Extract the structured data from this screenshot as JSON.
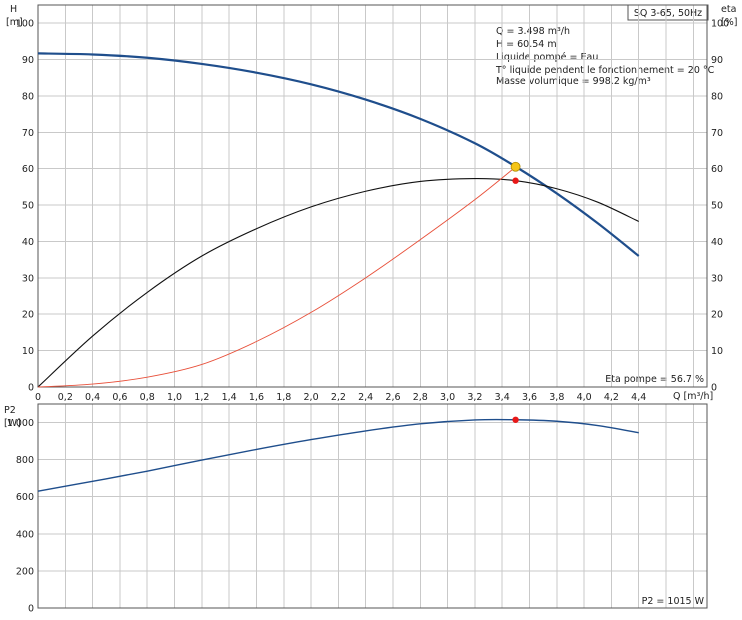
{
  "chart_data": [
    {
      "type": "line",
      "title": "SQ 3-65, 50Hz",
      "ylabel_left": "H",
      "ylabel_left_unit": "[m]",
      "ylabel_right": "eta",
      "ylabel_right_unit": "[%]",
      "xlabel": "Q [m³/h]",
      "xlim": [
        0,
        4.9
      ],
      "ylim": [
        0,
        105
      ],
      "x_ticks": [
        "0",
        "0,2",
        "0,4",
        "0,6",
        "0,8",
        "1,0",
        "1,2",
        "1,4",
        "1,6",
        "1,8",
        "2,0",
        "2,2",
        "2,4",
        "2,6",
        "2,8",
        "3,0",
        "3,2",
        "3,4",
        "3,6",
        "3,8",
        "4,0",
        "4,2",
        "4,4"
      ],
      "y_ticks": [
        "0",
        "10",
        "20",
        "30",
        "40",
        "50",
        "60",
        "70",
        "80",
        "90",
        "100"
      ],
      "info_lines": [
        "Q = 3.498 m³/h",
        "H = 60.54 m",
        "Liquide pompé = Eau",
        "T° liquide pendent le fonctionnement = 20 °C",
        "Masse volumique = 998.2 kg/m³"
      ],
      "annotation": "Eta pompe = 56.7 %",
      "series": [
        {
          "key": "head",
          "color": "#1f4e8c",
          "x": [
            0,
            0.4,
            0.8,
            1.2,
            1.6,
            2.0,
            2.4,
            2.8,
            3.2,
            3.5,
            3.8,
            4.1,
            4.4
          ],
          "y": [
            91.7,
            91.4,
            90.5,
            88.8,
            86.4,
            83.2,
            79.0,
            73.7,
            67.0,
            60.54,
            53.2,
            45.0,
            36.0
          ]
        },
        {
          "key": "efficiency",
          "color": "#111111",
          "x": [
            0,
            0.4,
            0.8,
            1.2,
            1.6,
            2.0,
            2.4,
            2.8,
            3.2,
            3.5,
            3.8,
            4.1,
            4.4
          ],
          "y": [
            0,
            14,
            26,
            36,
            43.5,
            49.5,
            53.8,
            56.5,
            57.3,
            56.7,
            54.5,
            50.8,
            45.5
          ]
        },
        {
          "key": "system",
          "color": "#e8503a",
          "x": [
            0,
            0.4,
            0.8,
            1.2,
            1.6,
            2.0,
            2.4,
            2.8,
            3.2,
            3.5
          ],
          "y": [
            0,
            0.8,
            2.7,
            6.2,
            12.5,
            20.5,
            30.0,
            40.5,
            51.5,
            60.54
          ]
        }
      ],
      "markers": [
        {
          "x": 3.498,
          "y": 60.54,
          "color": "#f5c518"
        },
        {
          "x": 3.498,
          "y": 56.7,
          "color": "#e81818"
        }
      ]
    },
    {
      "type": "line",
      "ylabel": "P2",
      "ylabel_unit": "[W]",
      "xlim": [
        0,
        4.9
      ],
      "ylim": [
        0,
        1100
      ],
      "y_ticks": [
        "0",
        "200",
        "400",
        "600",
        "800",
        "1 000"
      ],
      "annotation": "P2 = 1015 W",
      "series": [
        {
          "key": "p2",
          "color": "#1f4e8c",
          "x": [
            0,
            0.4,
            0.8,
            1.2,
            1.6,
            2.0,
            2.4,
            2.8,
            3.2,
            3.5,
            3.8,
            4.1,
            4.4
          ],
          "y": [
            630,
            683,
            738,
            798,
            855,
            908,
            955,
            993,
            1014,
            1015,
            1007,
            984,
            945
          ]
        }
      ],
      "markers": [
        {
          "x": 3.498,
          "y": 1015,
          "color": "#e81818"
        }
      ]
    }
  ]
}
